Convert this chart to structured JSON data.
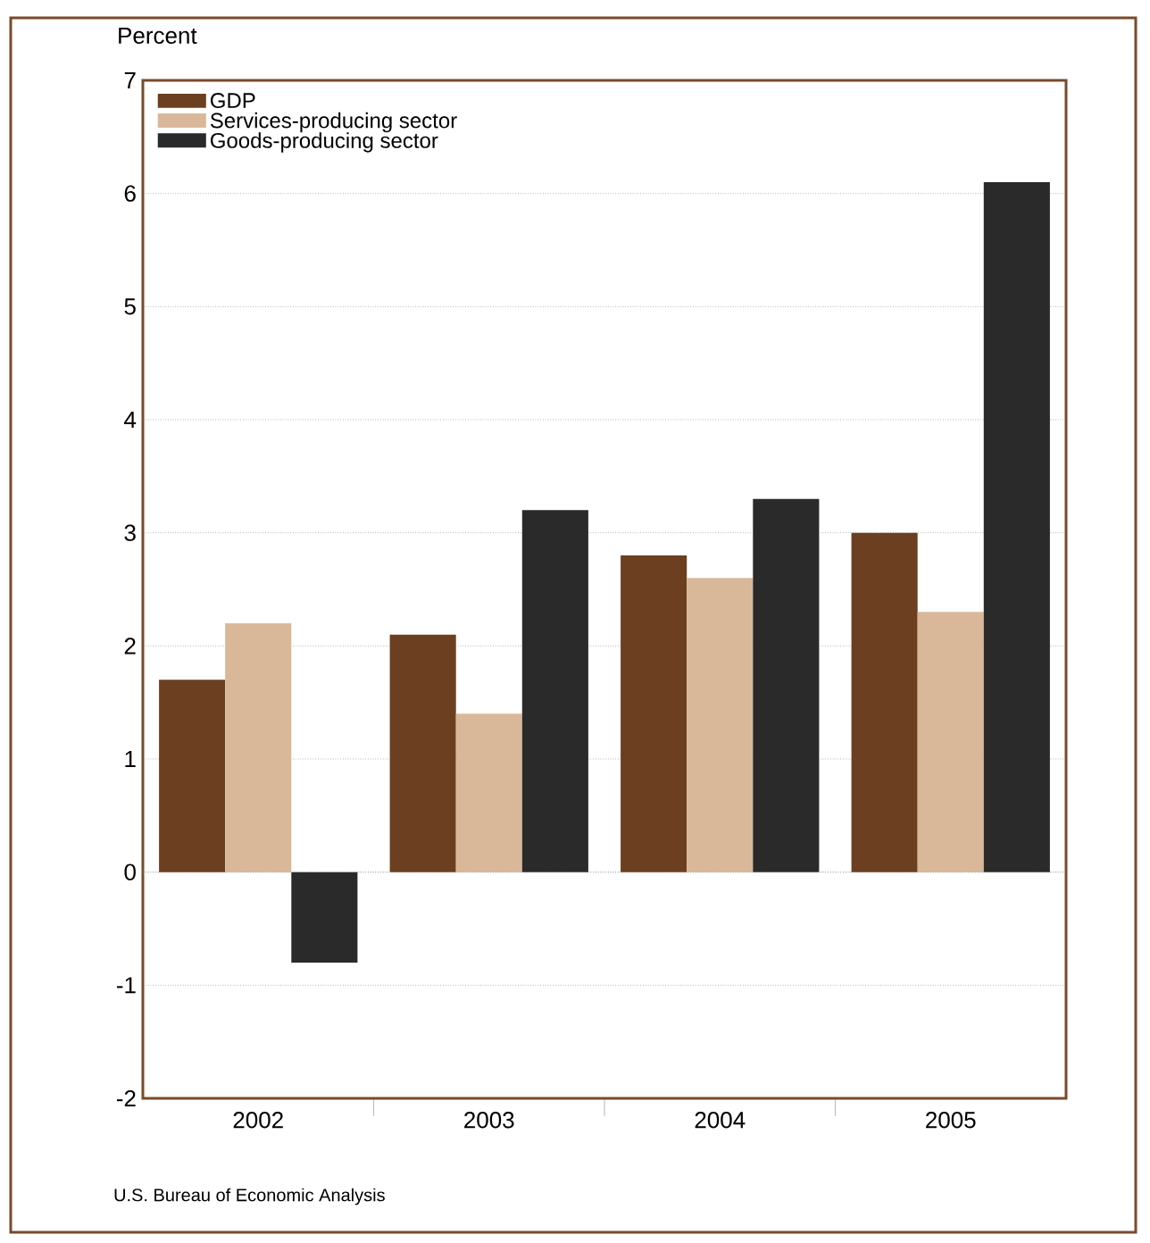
{
  "chart_data": {
    "type": "bar",
    "ylabel": "Percent",
    "categories": [
      "2002",
      "2003",
      "2004",
      "2005"
    ],
    "series": [
      {
        "name": "GDP",
        "color": "#6b3f1f",
        "values": [
          1.7,
          2.1,
          2.8,
          3.0
        ]
      },
      {
        "name": "Services-producing sector",
        "color": "#d9b89a",
        "values": [
          2.2,
          1.4,
          2.6,
          2.3
        ]
      },
      {
        "name": "Goods-producing sector",
        "color": "#2a2a2a",
        "values": [
          -0.8,
          3.2,
          3.3,
          6.1
        ]
      }
    ],
    "ylim": [
      -2,
      7
    ],
    "yticks": [
      -2,
      -1,
      0,
      1,
      2,
      3,
      4,
      5,
      6,
      7
    ],
    "grid": "y",
    "legend": "top left",
    "annotations": [
      "U.S. Bureau of Economic Analysis"
    ]
  }
}
